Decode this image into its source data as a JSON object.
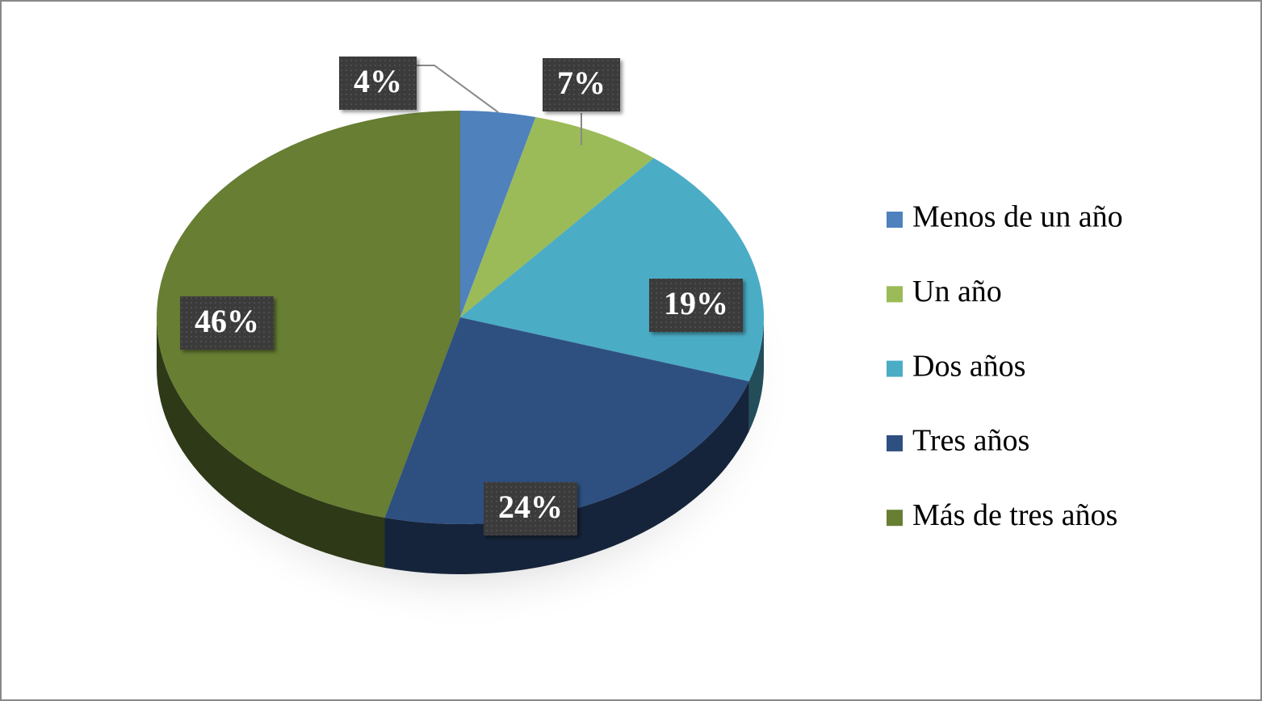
{
  "chart_data": {
    "type": "pie",
    "categories": [
      "Menos de un año",
      "Un año",
      "Dos años",
      "Tres años",
      "Más de tres años"
    ],
    "values": [
      4,
      7,
      19,
      24,
      46
    ],
    "value_labels": [
      "4%",
      "7%",
      "19%",
      "24%",
      "46%"
    ],
    "colors": [
      "#4f81bd",
      "#9bbb59",
      "#4bacc6",
      "#2e5080",
      "#677e33"
    ],
    "legend": "right"
  }
}
